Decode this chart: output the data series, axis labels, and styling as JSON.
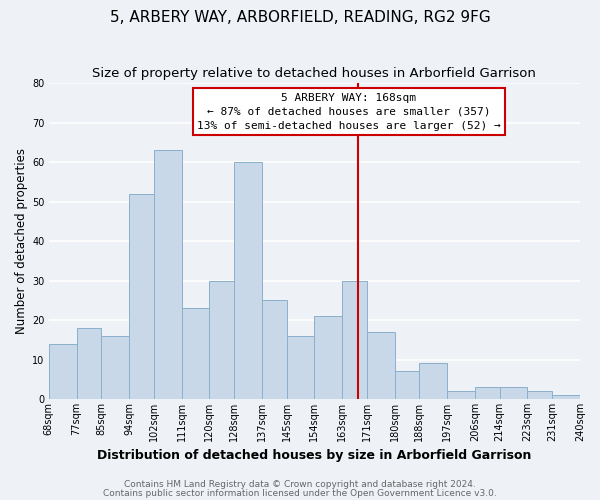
{
  "title": "5, ARBERY WAY, ARBORFIELD, READING, RG2 9FG",
  "subtitle": "Size of property relative to detached houses in Arborfield Garrison",
  "xlabel": "Distribution of detached houses by size in Arborfield Garrison",
  "ylabel": "Number of detached properties",
  "bins": [
    68,
    77,
    85,
    94,
    102,
    111,
    120,
    128,
    137,
    145,
    154,
    163,
    171,
    180,
    188,
    197,
    206,
    214,
    223,
    231,
    240
  ],
  "counts": [
    14,
    18,
    16,
    52,
    63,
    23,
    30,
    60,
    25,
    16,
    21,
    30,
    17,
    7,
    9,
    2,
    3,
    3,
    2,
    1
  ],
  "bar_color": "#c8d8e8",
  "bar_edge_color": "#8ab0cc",
  "reference_line_x": 168,
  "reference_line_color": "#cc0000",
  "annotation_title": "5 ARBERY WAY: 168sqm",
  "annotation_line1": "← 87% of detached houses are smaller (357)",
  "annotation_line2": "13% of semi-detached houses are larger (52) →",
  "annotation_box_facecolor": "white",
  "annotation_box_edgecolor": "#cc0000",
  "ylim": [
    0,
    80
  ],
  "xlim": [
    68,
    240
  ],
  "yticks": [
    0,
    10,
    20,
    30,
    40,
    50,
    60,
    70,
    80
  ],
  "tick_labels": [
    "68sqm",
    "77sqm",
    "85sqm",
    "94sqm",
    "102sqm",
    "111sqm",
    "120sqm",
    "128sqm",
    "137sqm",
    "145sqm",
    "154sqm",
    "163sqm",
    "171sqm",
    "180sqm",
    "188sqm",
    "197sqm",
    "206sqm",
    "214sqm",
    "223sqm",
    "231sqm",
    "240sqm"
  ],
  "tick_positions": [
    68,
    77,
    85,
    94,
    102,
    111,
    120,
    128,
    137,
    145,
    154,
    163,
    171,
    180,
    188,
    197,
    206,
    214,
    223,
    231,
    240
  ],
  "footnote1": "Contains HM Land Registry data © Crown copyright and database right 2024.",
  "footnote2": "Contains public sector information licensed under the Open Government Licence v3.0.",
  "background_color": "#eef2f7",
  "plot_bg_color": "#eef2f7",
  "grid_color": "white",
  "title_fontsize": 11,
  "subtitle_fontsize": 9.5,
  "xlabel_fontsize": 9,
  "ylabel_fontsize": 8.5,
  "tick_fontsize": 7,
  "annotation_fontsize": 8,
  "footnote_fontsize": 6.5
}
